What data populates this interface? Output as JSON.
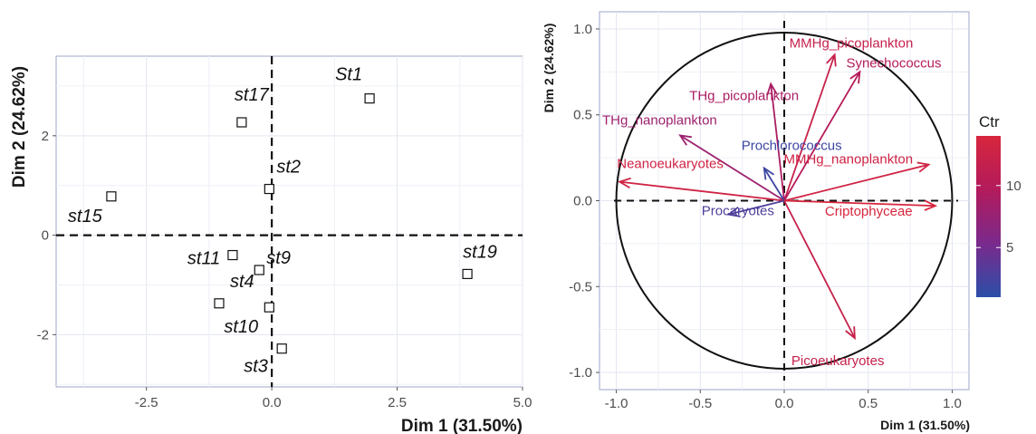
{
  "chart_data": [
    {
      "type": "scatter",
      "title": "",
      "xlabel": "Dim 1 (31.50%)",
      "ylabel": "Dim 2 (24.62%)",
      "xlim": [
        -4.3,
        5.0
      ],
      "ylim": [
        -3.05,
        3.6
      ],
      "xticks": [
        -2.5,
        0.0,
        2.5,
        5.0
      ],
      "xtick_labels": [
        "-2.5",
        "0.0",
        "2.5",
        "5.0"
      ],
      "yticks": [
        -2,
        0,
        2
      ],
      "ytick_labels": [
        "-2",
        "0",
        "2"
      ],
      "grid": true,
      "points": [
        {
          "label": "st17",
          "x": -0.6,
          "y": 2.27
        },
        {
          "label": "St1",
          "x": 1.95,
          "y": 2.75
        },
        {
          "label": "st2",
          "x": -0.05,
          "y": 0.93
        },
        {
          "label": "st15",
          "x": -3.2,
          "y": 0.78
        },
        {
          "label": "st11",
          "x": -0.78,
          "y": -0.4
        },
        {
          "label": "st9",
          "x": -0.25,
          "y": -0.7
        },
        {
          "label": "st4",
          "x": -1.05,
          "y": -1.37
        },
        {
          "label": "st10",
          "x": -0.05,
          "y": -1.45
        },
        {
          "label": "st3",
          "x": 0.2,
          "y": -2.28
        },
        {
          "label": "st19",
          "x": 3.9,
          "y": -0.78
        }
      ]
    },
    {
      "type": "biplot",
      "title": "",
      "xlabel": "Dim 1 (31.50%)",
      "ylabel": "Dim 2 (24.62%)",
      "xlim": [
        -1.1,
        1.1
      ],
      "ylim": [
        -1.1,
        1.1
      ],
      "xticks": [
        -1.0,
        -0.5,
        0.0,
        0.5,
        1.0
      ],
      "xtick_labels": [
        "-1.0",
        "-0.5",
        "0.0",
        "0.5",
        "1.0"
      ],
      "yticks": [
        -1.0,
        -0.5,
        0.0,
        0.5,
        1.0
      ],
      "ytick_labels": [
        "-1.0",
        "-0.5",
        "0.0",
        "0.5",
        "1.0"
      ],
      "grid": true,
      "legend": {
        "title": "Ctr",
        "placement": "right",
        "min": 1,
        "max": 14,
        "ticks": [
          5,
          10
        ],
        "tick_labels": [
          "5",
          "10"
        ],
        "colors": [
          "#2b4fa8",
          "#7a2a8c",
          "#b31b5c",
          "#d7263d"
        ]
      },
      "arrows": [
        {
          "label": "MMHg_picoplankton",
          "x": 0.3,
          "y": 0.85,
          "ctr": 12
        },
        {
          "label": "Synechococcus",
          "x": 0.45,
          "y": 0.75,
          "ctr": 10
        },
        {
          "label": "THg_picoplankton",
          "x": -0.08,
          "y": 0.68,
          "ctr": 9
        },
        {
          "label": "THg_nanoplankton",
          "x": -0.62,
          "y": 0.38,
          "ctr": 8
        },
        {
          "label": "Prochlorococcus",
          "x": -0.12,
          "y": 0.19,
          "ctr": 2
        },
        {
          "label": "MMHg_nanoplankton",
          "x": 0.86,
          "y": 0.21,
          "ctr": 13
        },
        {
          "label": "Neanoeukaryotes",
          "x": -0.98,
          "y": 0.11,
          "ctr": 13
        },
        {
          "label": "Procaryotes",
          "x": -0.33,
          "y": -0.08,
          "ctr": 3
        },
        {
          "label": "Criptophyceae",
          "x": 0.9,
          "y": -0.03,
          "ctr": 14
        },
        {
          "label": "Picoeukaryotes",
          "x": 0.42,
          "y": -0.8,
          "ctr": 12
        }
      ]
    }
  ]
}
